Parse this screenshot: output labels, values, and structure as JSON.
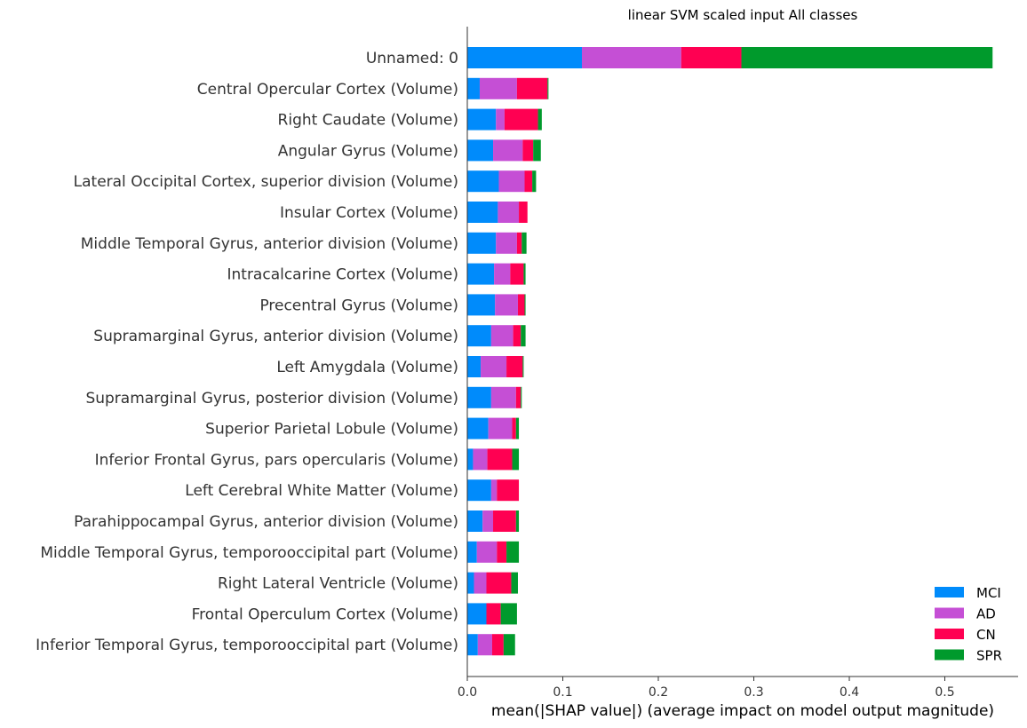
{
  "chart_data": {
    "type": "bar",
    "orientation": "horizontal",
    "stacked": true,
    "title": "linear SVM scaled input All classes",
    "xlabel": "mean(|SHAP value|) (average impact on model output magnitude)",
    "ylabel": "",
    "xlim": [
      0,
      0.578
    ],
    "xticks": [
      "0.0",
      "0.1",
      "0.2",
      "0.3",
      "0.4",
      "0.5"
    ],
    "grid": false,
    "legend_position": "bottom-right",
    "categories": [
      "Unnamed: 0",
      "Central Opercular Cortex (Volume)",
      "Right Caudate (Volume)",
      "Angular Gyrus (Volume)",
      "Lateral Occipital Cortex, superior division (Volume)",
      "Insular Cortex (Volume)",
      "Middle Temporal Gyrus, anterior division (Volume)",
      "Intracalcarine Cortex (Volume)",
      "Precentral Gyrus (Volume)",
      "Supramarginal Gyrus, anterior division (Volume)",
      "Left Amygdala (Volume)",
      "Supramarginal Gyrus, posterior division (Volume)",
      "Superior Parietal Lobule (Volume)",
      "Inferior Frontal Gyrus, pars opercularis (Volume)",
      "Left Cerebral White Matter (Volume)",
      "Parahippocampal Gyrus, anterior division (Volume)",
      "Middle Temporal Gyrus, temporooccipital part (Volume)",
      "Right Lateral Ventricle (Volume)",
      "Frontal Operculum Cortex (Volume)",
      "Inferior Temporal Gyrus, temporooccipital part (Volume)"
    ],
    "series": [
      {
        "name": "MCI",
        "color": "#008bfb",
        "values": [
          0.12,
          0.013,
          0.03,
          0.027,
          0.033,
          0.032,
          0.03,
          0.028,
          0.029,
          0.025,
          0.014,
          0.025,
          0.022,
          0.006,
          0.025,
          0.016,
          0.01,
          0.007,
          0.02,
          0.011
        ]
      },
      {
        "name": "AD",
        "color": "#c54fd5",
        "values": [
          0.104,
          0.039,
          0.009,
          0.031,
          0.027,
          0.022,
          0.022,
          0.017,
          0.024,
          0.023,
          0.027,
          0.026,
          0.025,
          0.015,
          0.006,
          0.011,
          0.021,
          0.013,
          0.0,
          0.015
        ]
      },
      {
        "name": "CN",
        "color": "#ff0052",
        "values": [
          0.063,
          0.032,
          0.035,
          0.011,
          0.008,
          0.009,
          0.005,
          0.014,
          0.007,
          0.008,
          0.017,
          0.005,
          0.004,
          0.026,
          0.023,
          0.024,
          0.01,
          0.026,
          0.015,
          0.012
        ]
      },
      {
        "name": "SPR",
        "color": "#009a2c",
        "values": [
          0.263,
          0.001,
          0.004,
          0.008,
          0.004,
          0.0,
          0.005,
          0.002,
          0.001,
          0.005,
          0.001,
          0.001,
          0.003,
          0.007,
          0.0,
          0.003,
          0.013,
          0.007,
          0.017,
          0.012
        ]
      }
    ]
  }
}
